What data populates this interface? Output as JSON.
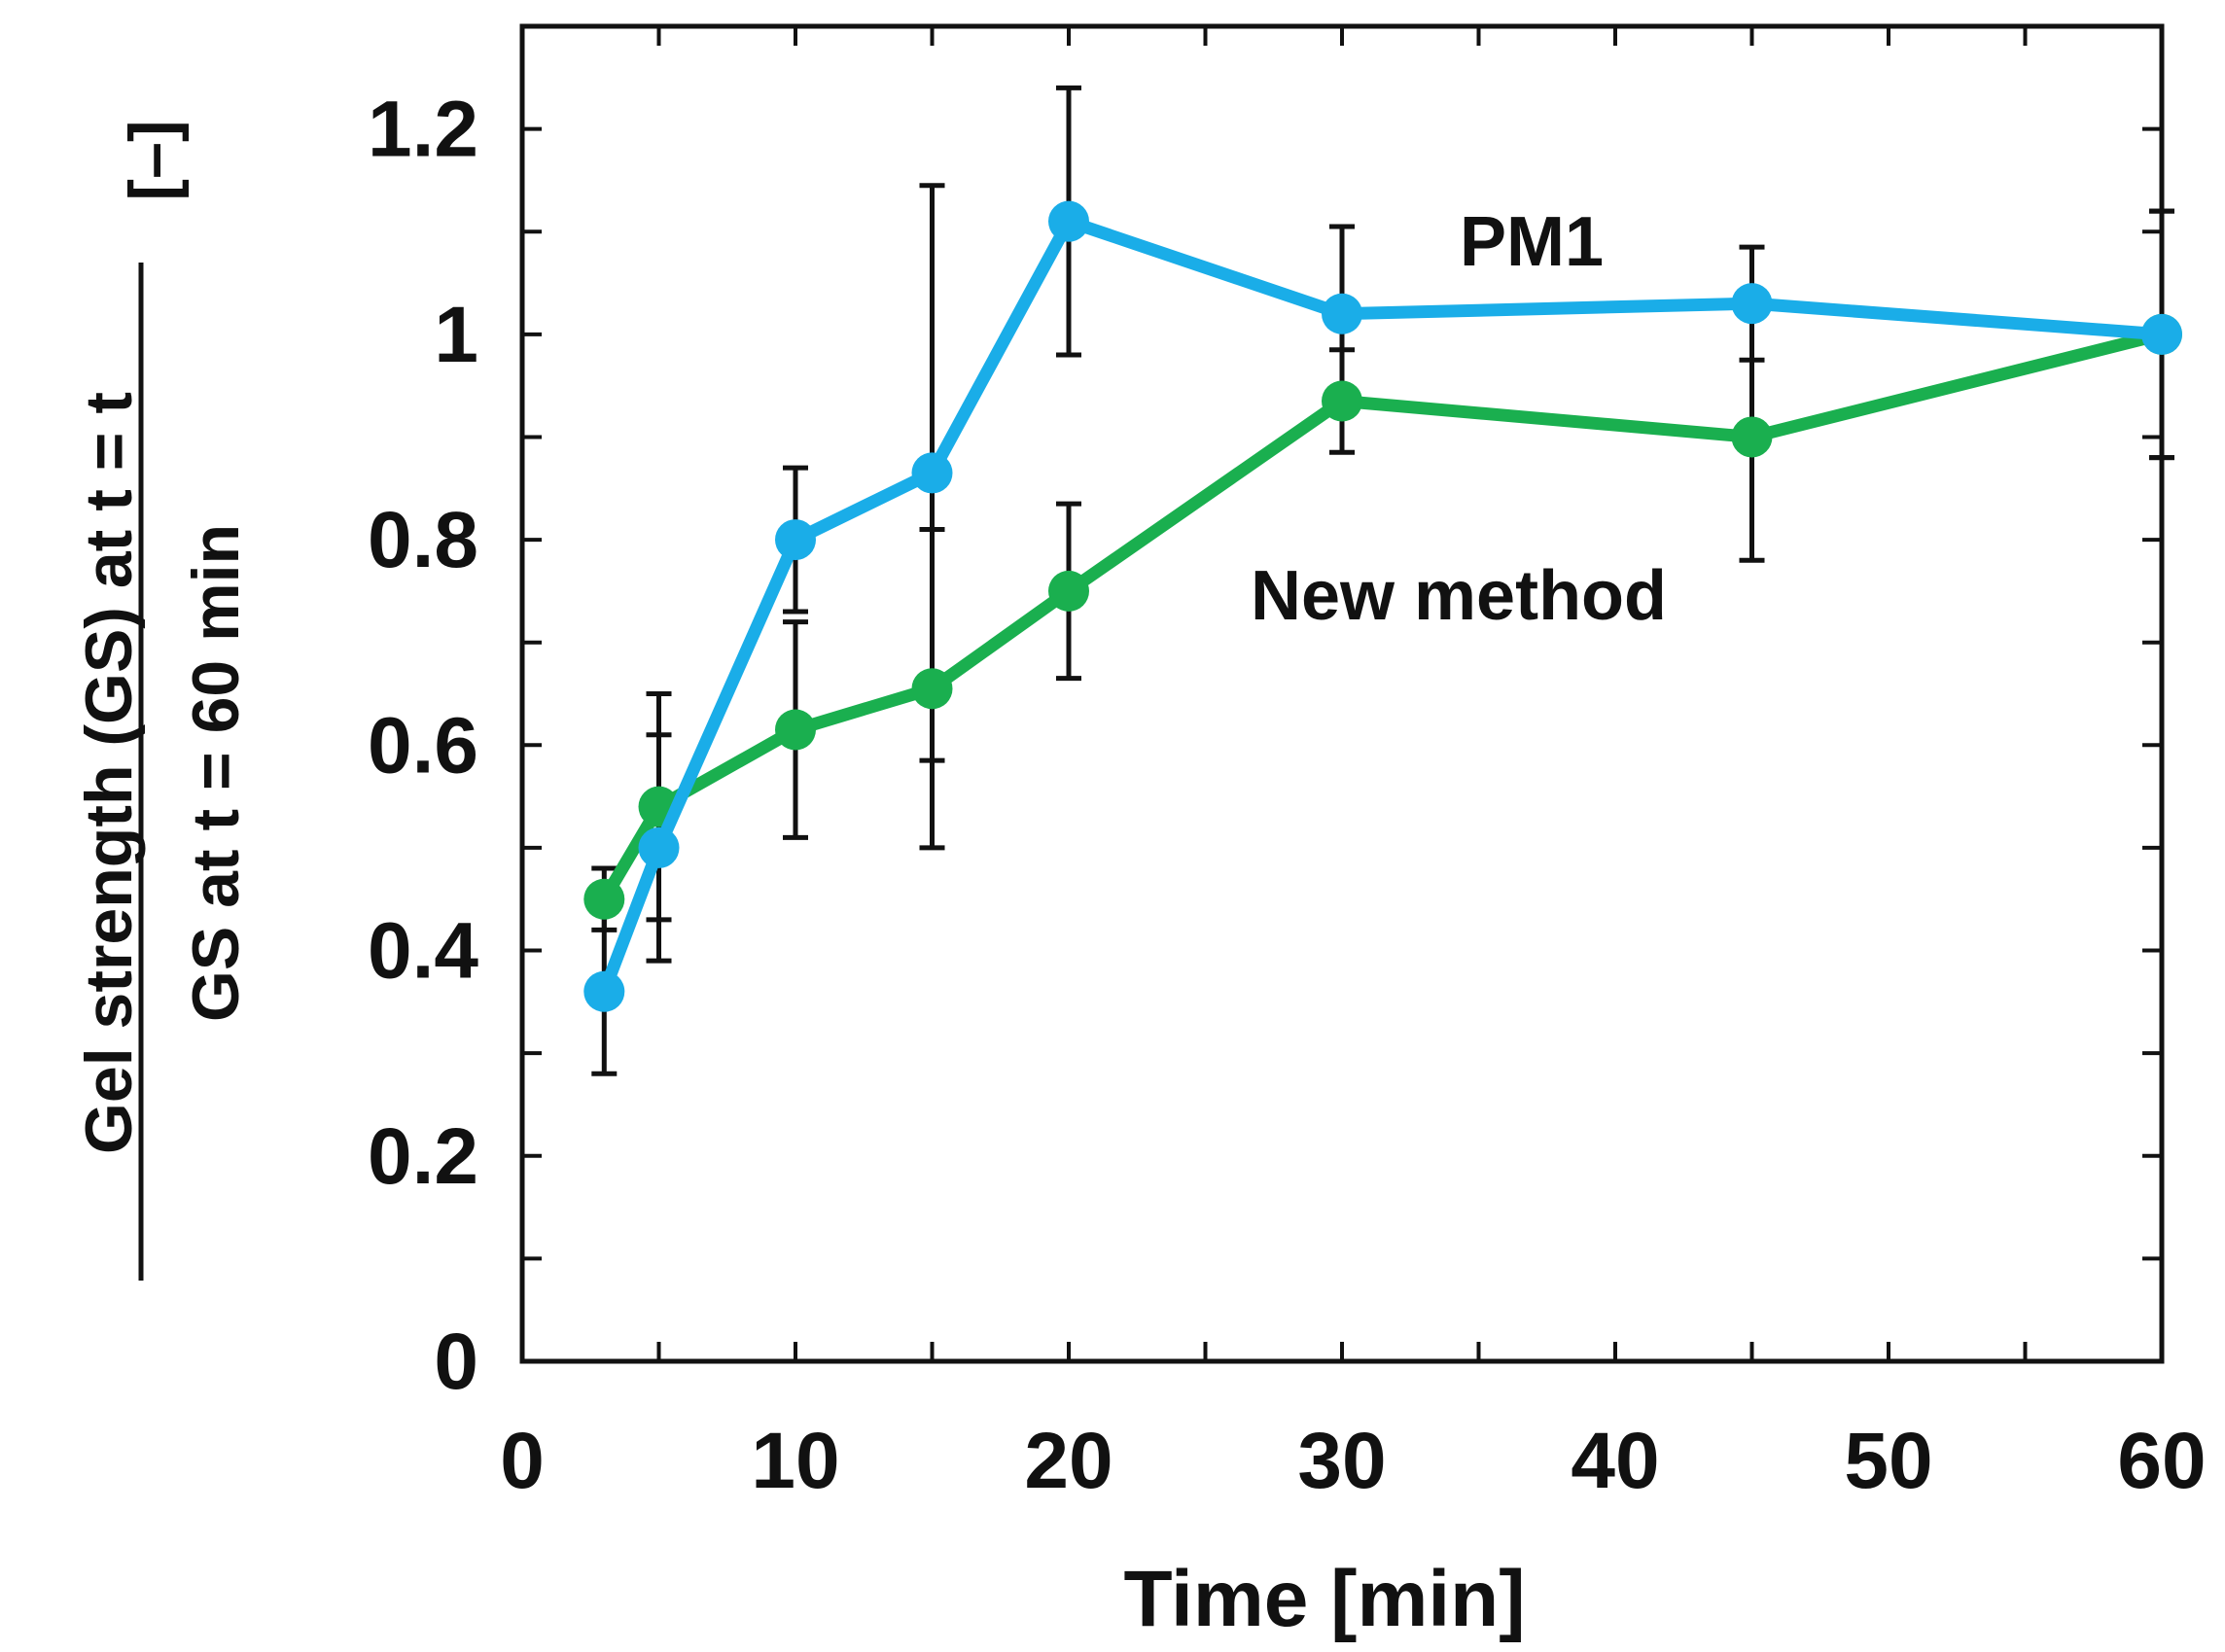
{
  "chart_data": {
    "type": "line",
    "x": [
      3,
      5,
      10,
      15,
      20,
      30,
      45,
      60
    ],
    "series": [
      {
        "name": "PM1",
        "color": "#1aade8",
        "values": [
          0.36,
          0.5,
          0.8,
          0.865,
          1.11,
          1.02,
          1.03,
          1.0
        ],
        "error": [
          0.08,
          0.11,
          0.07,
          0.28,
          0.13,
          0.085,
          0.055,
          0.12
        ]
      },
      {
        "name": "New method",
        "color": "#1aaf4f",
        "values": [
          0.45,
          0.54,
          0.615,
          0.655,
          0.75,
          0.935,
          0.9,
          1.0
        ],
        "error": [
          0.03,
          0.11,
          0.105,
          0.155,
          0.085,
          0.05,
          0.12,
          0.12
        ]
      }
    ],
    "xlim": [
      0,
      60
    ],
    "ylim": [
      0,
      1.3
    ],
    "xticks": [
      "0",
      "10",
      "20",
      "30",
      "40",
      "50",
      "60"
    ],
    "yticks": [
      "0",
      "0.2",
      "0.4",
      "0.6",
      "0.8",
      "1",
      "1.2"
    ],
    "xlabel": "Time [min]",
    "ylabel_numerator": "Gel strength (GS) at t = t",
    "ylabel_denominator": "GS at t = 60 min",
    "ylabel_unit": "[–]",
    "annotations": [
      "PM1",
      "New method"
    ],
    "grid": false
  }
}
